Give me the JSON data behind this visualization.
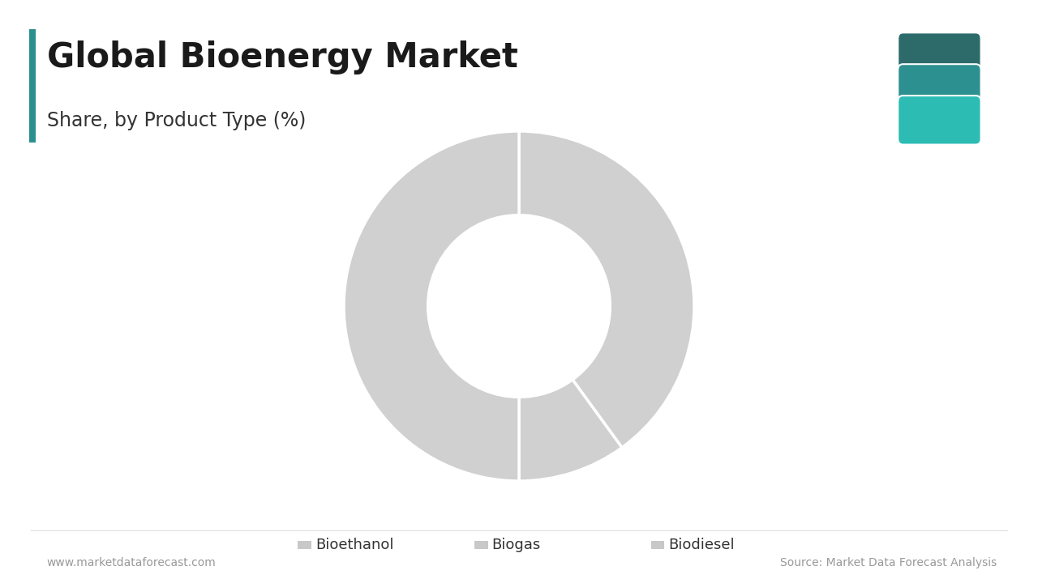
{
  "title": "Global Bioenergy Market",
  "subtitle": "Share, by Product Type (%)",
  "labels": [
    "Bioethanol",
    "Biogas",
    "Biodiesel"
  ],
  "values": [
    40,
    10,
    50
  ],
  "wedge_color": "#d0d0d0",
  "background_color": "#ffffff",
  "title_color": "#1a1a1a",
  "subtitle_color": "#333333",
  "accent_color": "#2d9090",
  "footer_left": "www.marketdataforecast.com",
  "footer_right": "Source: Market Data Forecast Analysis",
  "legend_marker_color": "#c8c8c8",
  "donut_hole": 0.5,
  "start_angle": 90,
  "logo_colors": [
    "#2d6b6b",
    "#2d9090",
    "#2dbcb4"
  ],
  "wedge_edge_color": "#ffffff",
  "wedge_linewidth": 2.5
}
